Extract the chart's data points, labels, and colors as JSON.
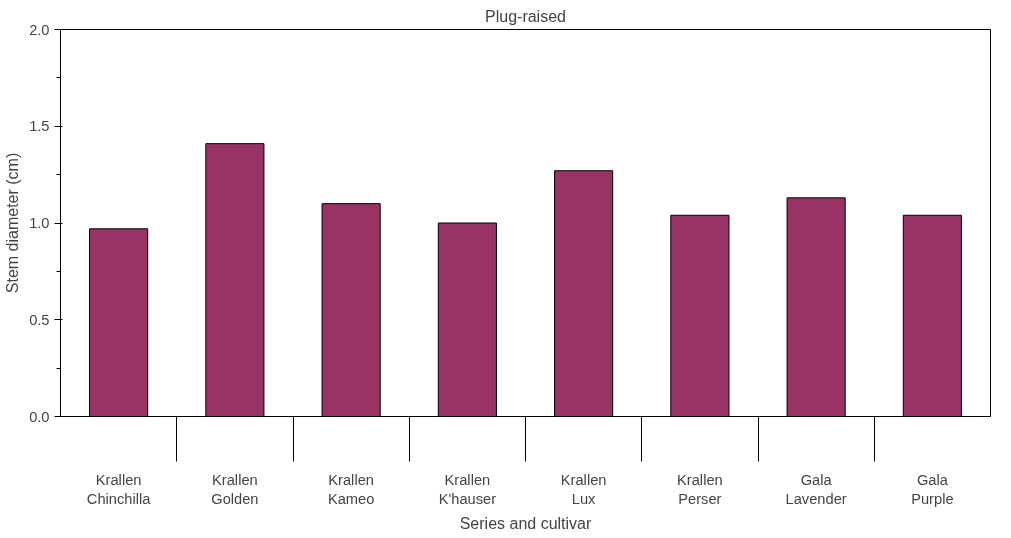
{
  "chart_data": {
    "type": "bar",
    "title": "Plug-raised",
    "xlabel": "Series and cultivar",
    "ylabel": "Stem diameter (cm)",
    "categories": [
      "Krallen\nChinchilla",
      "Krallen\nGolden",
      "Krallen\nKameo",
      "Krallen\nK'hauser",
      "Krallen\nLux",
      "Krallen\nPerser",
      "Gala\nLavender",
      "Gala\nPurple"
    ],
    "values": [
      0.97,
      1.41,
      1.1,
      1.0,
      1.27,
      1.04,
      1.13,
      1.04
    ],
    "color": "#993366",
    "ylim": [
      0,
      2
    ],
    "yticks": [
      {
        "value": 0,
        "label": "0.0"
      },
      {
        "value": 0.5,
        "label": "0.5"
      },
      {
        "value": 1,
        "label": "1.0"
      },
      {
        "value": 1.5,
        "label": "1.5"
      },
      {
        "value": 2,
        "label": "2.0"
      }
    ],
    "grid": false
  }
}
